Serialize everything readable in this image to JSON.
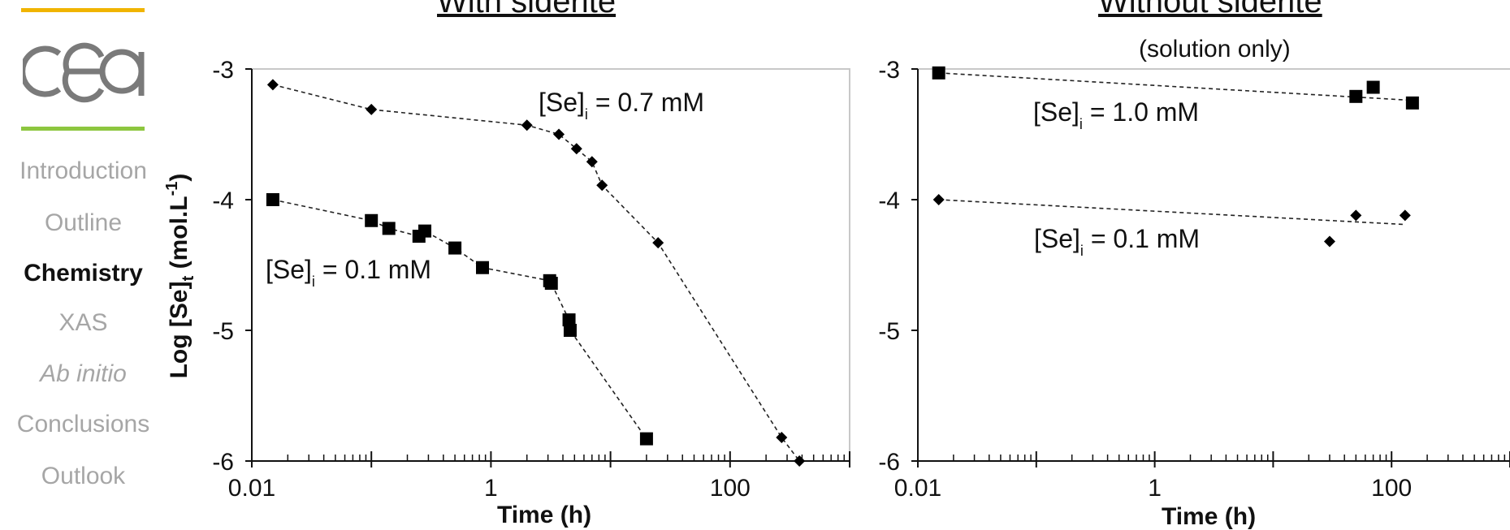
{
  "sidebar": {
    "items": [
      {
        "label": "Introduction",
        "state": "inactive"
      },
      {
        "label": "Outline",
        "state": "inactive"
      },
      {
        "label": "Chemistry",
        "state": "active"
      },
      {
        "label": "XAS",
        "state": "inactive"
      },
      {
        "label": "Ab initio",
        "state": "inactive-italic"
      },
      {
        "label": "Conclusions",
        "state": "inactive"
      },
      {
        "label": "Outlook",
        "state": "inactive"
      }
    ],
    "logo_text": "cea",
    "colors": {
      "accent_top": "#f0b400",
      "accent_bottom": "#8dc63f",
      "active": "#111111",
      "inactive": "#a6a6a6"
    }
  },
  "panels": {
    "left_title": "With siderite",
    "right_title": "Without siderite",
    "right_subtitle": "(solution only)"
  },
  "chart_data": [
    {
      "type": "line",
      "title": "With siderite",
      "xlabel": "Time (h)",
      "ylabel": "Log [Se]t (mol.L-1)",
      "xscale": "log",
      "xlim": [
        0.01,
        1000
      ],
      "ylim": [
        -6,
        -3
      ],
      "x_tick_labels": [
        "0.01",
        "1",
        "100"
      ],
      "y_tick_labels": [
        "-3",
        "-4",
        "-5",
        "-6"
      ],
      "grid": false,
      "series": [
        {
          "name": "[Se]i = 0.7 mM",
          "marker": "diamond",
          "x": [
            0.015,
            0.1,
            2.0,
            3.7,
            5.2,
            7.0,
            8.5,
            25,
            270,
            380
          ],
          "y": [
            -3.12,
            -3.31,
            -3.43,
            -3.5,
            -3.61,
            -3.71,
            -3.89,
            -4.33,
            -5.82,
            -6.0
          ]
        },
        {
          "name": "[Se]i = 0.1 mM",
          "marker": "square",
          "x": [
            0.015,
            0.1,
            0.14,
            0.25,
            0.28,
            0.5,
            0.85,
            3.1,
            3.2,
            4.5,
            4.6,
            20
          ],
          "y": [
            -4.0,
            -4.16,
            -4.22,
            -4.28,
            -4.24,
            -4.37,
            -4.52,
            -4.62,
            -4.64,
            -4.92,
            -5.0,
            -5.83
          ]
        }
      ],
      "annotations": [
        {
          "label": "[Se]",
          "sub": "i",
          "value": "= 0.7 mM"
        },
        {
          "label": "[Se]",
          "sub": "i",
          "value": "= 0.1 mM"
        }
      ]
    },
    {
      "type": "scatter",
      "title": "Without siderite",
      "subtitle": "(solution only)",
      "xlabel": "Time (h)",
      "xscale": "log",
      "xlim": [
        0.01,
        1000
      ],
      "ylim": [
        -6,
        -3
      ],
      "x_tick_labels": [
        "0.01",
        "1",
        "100"
      ],
      "y_tick_labels": [
        "-3",
        "-4",
        "-5",
        "-6"
      ],
      "grid": false,
      "series": [
        {
          "name": "[Se]i = 1.0 mM",
          "marker": "square",
          "x": [
            0.015,
            50,
            70,
            150
          ],
          "y": [
            -3.03,
            -3.21,
            -3.14,
            -3.26
          ]
        },
        {
          "name": "[Se]i = 0.1 mM",
          "marker": "diamond",
          "x": [
            0.015,
            30,
            50,
            130
          ],
          "y": [
            -4.0,
            -4.32,
            -4.12,
            -4.12
          ]
        }
      ],
      "trendlines": [
        {
          "x": [
            0.015,
            150
          ],
          "y": [
            -3.03,
            -3.24
          ]
        },
        {
          "x": [
            0.015,
            130
          ],
          "y": [
            -4.0,
            -4.19
          ]
        }
      ],
      "annotations": [
        {
          "label": "[Se]",
          "sub": "i",
          "value": "= 1.0 mM"
        },
        {
          "label": "[Se]",
          "sub": "i",
          "value": "= 0.1 mM"
        }
      ]
    }
  ]
}
